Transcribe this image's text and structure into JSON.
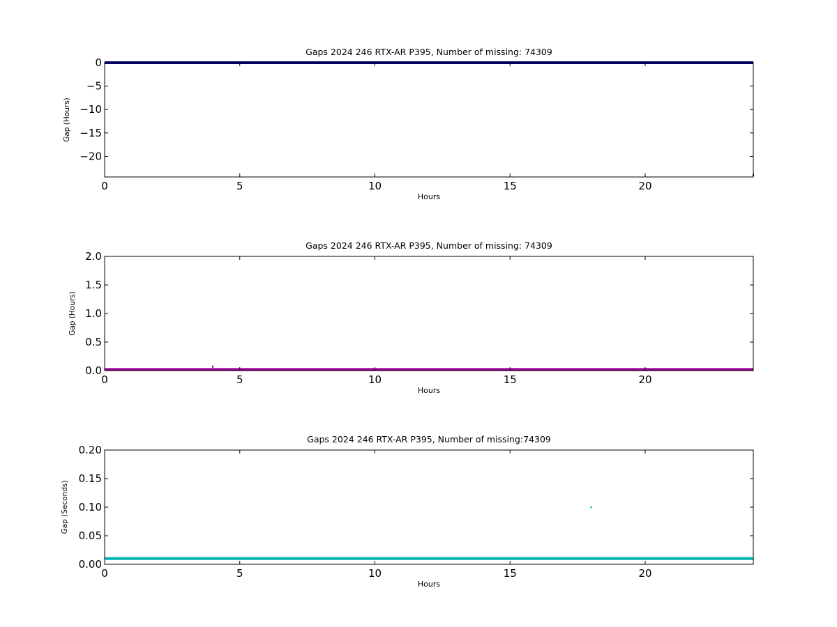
{
  "chart_data": [
    {
      "type": "scatter",
      "title": "Gaps 2024 246 RTX-AR  P395, Number of missing: 74309",
      "xlabel": "Hours",
      "ylabel": "Gap (Hours)",
      "xlim": [
        0,
        24
      ],
      "ylim": [
        -24.4,
        0
      ],
      "xticks": [
        "0",
        "5",
        "10",
        "15",
        "20"
      ],
      "xtick_values": [
        0,
        5,
        10,
        15,
        20
      ],
      "yticks": [
        "0",
        "−5",
        "−10",
        "−15",
        "−20"
      ],
      "ytick_values": [
        0,
        -5,
        -10,
        -15,
        -20
      ],
      "grid": false,
      "series": [
        {
          "color": "#000080",
          "baseline": {
            "y": 0,
            "x_from": 0,
            "x_to": 24
          },
          "points": [
            {
              "x": 4.0,
              "y": 0
            },
            {
              "x": 24.0,
              "y": -24.0
            }
          ]
        }
      ]
    },
    {
      "type": "scatter",
      "title": "Gaps 2024 246 RTX-AR  P395, Number of missing: 74309",
      "xlabel": "Hours",
      "ylabel": "Gap (Hours)",
      "xlim": [
        0,
        24
      ],
      "ylim": [
        0,
        2
      ],
      "xticks": [
        "0",
        "5",
        "10",
        "15",
        "20"
      ],
      "xtick_values": [
        0,
        5,
        10,
        15,
        20
      ],
      "yticks": [
        "0.0",
        "0.5",
        "1.0",
        "1.5",
        "2.0"
      ],
      "ytick_values": [
        0,
        0.5,
        1.0,
        1.5,
        2.0
      ],
      "grid": false,
      "series": [
        {
          "color": "#990099",
          "baseline": {
            "y": 0.02,
            "x_from": 0,
            "x_to": 24
          },
          "points": [
            {
              "x": 4.0,
              "y": 0.07
            }
          ]
        }
      ]
    },
    {
      "type": "scatter",
      "title": "Gaps 2024 246 RTX-AR  P395, Number of missing:74309",
      "xlabel": "Hours",
      "ylabel": "Gap (Seconds)",
      "xlim": [
        0,
        24
      ],
      "ylim": [
        0,
        0.2
      ],
      "xticks": [
        "0",
        "5",
        "10",
        "15",
        "20"
      ],
      "xtick_values": [
        0,
        5,
        10,
        15,
        20
      ],
      "yticks": [
        "0.00",
        "0.05",
        "0.10",
        "0.15",
        "0.20"
      ],
      "ytick_values": [
        0,
        0.05,
        0.1,
        0.15,
        0.2
      ],
      "grid": false,
      "series": [
        {
          "color": "#00b3b3",
          "baseline": {
            "y": 0.01,
            "x_from": 0,
            "x_to": 24
          },
          "points": [
            {
              "x": 18.0,
              "y": 0.1
            }
          ]
        }
      ]
    }
  ]
}
